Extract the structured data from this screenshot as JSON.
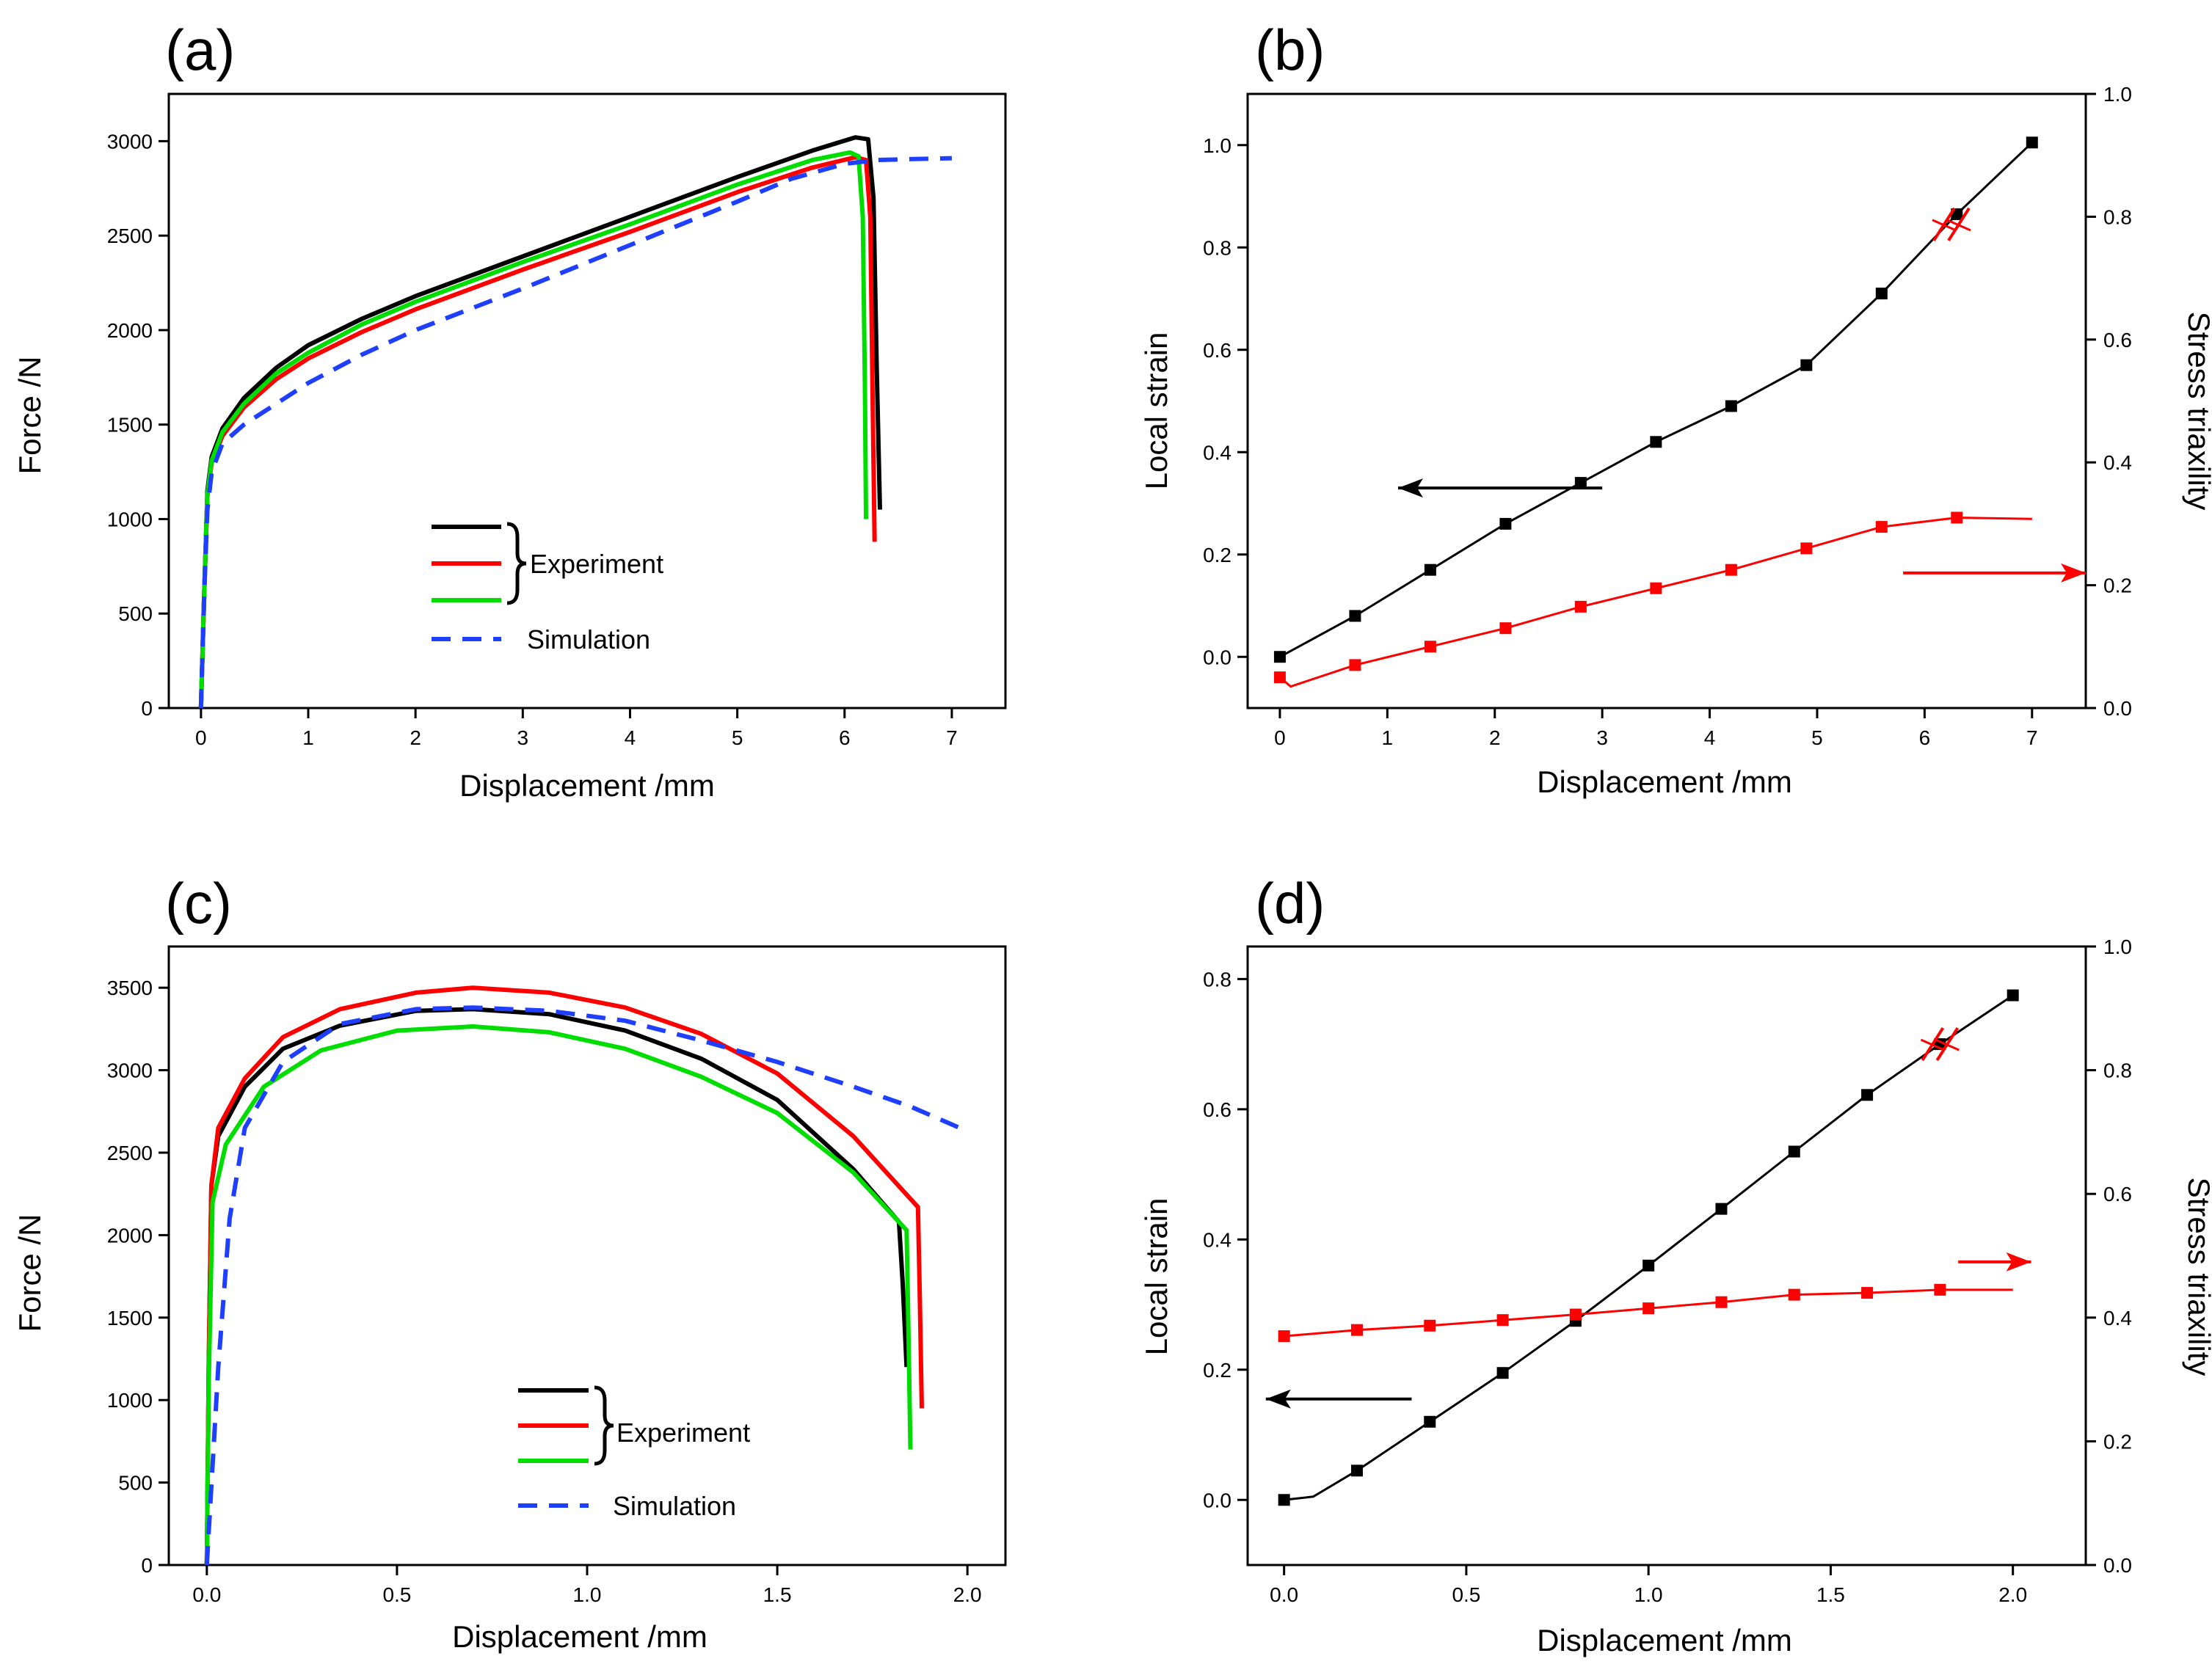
{
  "chart_data": [
    {
      "panel": "(a)",
      "type": "line",
      "xlabel": "Displacement  /mm",
      "ylabel": "Force /N",
      "xlim": [
        -0.3,
        7.5
      ],
      "ylim": [
        0,
        3250
      ],
      "xticks": [
        0,
        1,
        2,
        3,
        4,
        5,
        6,
        7
      ],
      "yticks": [
        0,
        500,
        1000,
        1500,
        2000,
        2500,
        3000
      ],
      "legend": {
        "placement": "center",
        "group_label": "Experiment",
        "sim_label": "Simulation"
      },
      "series": [
        {
          "kind": "experiment",
          "color": "#000000",
          "dash": false,
          "points": [
            [
              0,
              0
            ],
            [
              0.03,
              600
            ],
            [
              0.06,
              1150
            ],
            [
              0.1,
              1330
            ],
            [
              0.2,
              1480
            ],
            [
              0.4,
              1640
            ],
            [
              0.7,
              1800
            ],
            [
              1,
              1920
            ],
            [
              1.5,
              2060
            ],
            [
              2,
              2180
            ],
            [
              3,
              2390
            ],
            [
              4,
              2600
            ],
            [
              5,
              2810
            ],
            [
              5.7,
              2950
            ],
            [
              6.1,
              3020
            ],
            [
              6.22,
              3010
            ],
            [
              6.27,
              2700
            ],
            [
              6.3,
              1800
            ],
            [
              6.33,
              1050
            ]
          ]
        },
        {
          "kind": "experiment",
          "color": "#ff0000",
          "dash": false,
          "points": [
            [
              0,
              0
            ],
            [
              0.03,
              600
            ],
            [
              0.06,
              1120
            ],
            [
              0.1,
              1300
            ],
            [
              0.2,
              1440
            ],
            [
              0.4,
              1590
            ],
            [
              0.7,
              1740
            ],
            [
              1,
              1850
            ],
            [
              1.5,
              1990
            ],
            [
              2,
              2110
            ],
            [
              3,
              2320
            ],
            [
              4,
              2520
            ],
            [
              5,
              2730
            ],
            [
              5.7,
              2860
            ],
            [
              6.1,
              2915
            ],
            [
              6.2,
              2900
            ],
            [
              6.24,
              2600
            ],
            [
              6.26,
              1700
            ],
            [
              6.28,
              880
            ]
          ]
        },
        {
          "kind": "experiment",
          "color": "#00dd00",
          "dash": false,
          "points": [
            [
              0,
              0
            ],
            [
              0.03,
              600
            ],
            [
              0.06,
              1130
            ],
            [
              0.1,
              1310
            ],
            [
              0.2,
              1460
            ],
            [
              0.4,
              1610
            ],
            [
              0.7,
              1770
            ],
            [
              1,
              1880
            ],
            [
              1.5,
              2030
            ],
            [
              2,
              2150
            ],
            [
              3,
              2360
            ],
            [
              4,
              2560
            ],
            [
              5,
              2770
            ],
            [
              5.7,
              2900
            ],
            [
              6.05,
              2940
            ],
            [
              6.13,
              2920
            ],
            [
              6.17,
              2600
            ],
            [
              6.19,
              1700
            ],
            [
              6.2,
              1000
            ]
          ]
        },
        {
          "kind": "simulation",
          "color": "#1f3fff",
          "dash": true,
          "points": [
            [
              0,
              0
            ],
            [
              0.03,
              600
            ],
            [
              0.06,
              1050
            ],
            [
              0.1,
              1250
            ],
            [
              0.2,
              1400
            ],
            [
              0.4,
              1500
            ],
            [
              0.7,
              1610
            ],
            [
              1,
              1720
            ],
            [
              1.5,
              1870
            ],
            [
              2,
              2000
            ],
            [
              3,
              2220
            ],
            [
              4,
              2450
            ],
            [
              5,
              2680
            ],
            [
              5.5,
              2800
            ],
            [
              6,
              2880
            ],
            [
              6.3,
              2900
            ],
            [
              6.6,
              2905
            ],
            [
              7,
              2910
            ]
          ]
        }
      ]
    },
    {
      "panel": "(b)",
      "type": "line",
      "xlabel": "Displacement  /mm",
      "ylabel": "Local strain",
      "y2label": "Stress triaxility",
      "xlim": [
        -0.3,
        7.5
      ],
      "ylim": [
        -0.1,
        1.1
      ],
      "y2lim": [
        0.0,
        1.0
      ],
      "xticks": [
        0,
        1,
        2,
        3,
        4,
        5,
        6,
        7
      ],
      "yticks": [
        0.0,
        0.2,
        0.4,
        0.6,
        0.8,
        1.0
      ],
      "y2ticks": [
        0.0,
        0.2,
        0.4,
        0.6,
        0.8,
        1.0
      ],
      "series": [
        {
          "name": "",
          "axis": "left",
          "color": "#000000",
          "x": [
            0,
            0.7,
            1.4,
            2.1,
            2.8,
            3.5,
            4.2,
            4.9,
            5.6,
            6.3,
            7.0
          ],
          "values": [
            0.0,
            0.08,
            0.17,
            0.26,
            0.34,
            0.42,
            0.49,
            0.57,
            0.71,
            0.865,
            1.005
          ]
        },
        {
          "name": "",
          "axis": "right",
          "color": "#ff0000",
          "x": [
            0,
            0.7,
            1.4,
            2.1,
            2.8,
            3.5,
            4.2,
            4.9,
            5.6,
            6.3
          ],
          "values": [
            0.05,
            0.07,
            0.1,
            0.13,
            0.165,
            0.195,
            0.225,
            0.26,
            0.295,
            0.31
          ],
          "tail": [
            [
              0.1,
              0.035
            ],
            [
              7.0,
              0.308
            ]
          ]
        }
      ],
      "fracture_mark": {
        "x": 6.25,
        "axis": "left",
        "y": 0.845
      },
      "arrows": [
        {
          "direction": "left",
          "color": "#000000",
          "x_from": 3.0,
          "x_to": 1.1,
          "y_axis": "left",
          "y": 0.33
        },
        {
          "direction": "right",
          "color": "#ff0000",
          "x_from": 5.8,
          "x_to": 7.5,
          "y_axis": "right",
          "y": 0.22
        }
      ]
    },
    {
      "panel": "(c)",
      "type": "line",
      "xlabel": "Displacement  /mm",
      "ylabel": "Force /N",
      "xlim": [
        -0.1,
        2.1
      ],
      "ylim": [
        0,
        3750
      ],
      "xticks": [
        0.0,
        0.5,
        1.0,
        1.5,
        2.0
      ],
      "yticks": [
        0,
        500,
        1000,
        1500,
        2000,
        2500,
        3000,
        3500
      ],
      "legend": {
        "placement": "bottom-center",
        "group_label": "Experiment",
        "sim_label": "Simulation"
      },
      "series": [
        {
          "kind": "experiment",
          "color": "#000000",
          "dash": false,
          "points": [
            [
              0,
              0
            ],
            [
              0.005,
              1200
            ],
            [
              0.012,
              2300
            ],
            [
              0.03,
              2600
            ],
            [
              0.1,
              2900
            ],
            [
              0.2,
              3130
            ],
            [
              0.35,
              3270
            ],
            [
              0.55,
              3360
            ],
            [
              0.7,
              3370
            ],
            [
              0.9,
              3340
            ],
            [
              1.1,
              3240
            ],
            [
              1.3,
              3070
            ],
            [
              1.5,
              2820
            ],
            [
              1.7,
              2400
            ],
            [
              1.82,
              2080
            ],
            [
              1.83,
              1700
            ],
            [
              1.84,
              1200
            ]
          ]
        },
        {
          "kind": "experiment",
          "color": "#ff0000",
          "dash": false,
          "points": [
            [
              0,
              0
            ],
            [
              0.005,
              1200
            ],
            [
              0.012,
              2300
            ],
            [
              0.03,
              2650
            ],
            [
              0.1,
              2950
            ],
            [
              0.2,
              3200
            ],
            [
              0.35,
              3370
            ],
            [
              0.55,
              3470
            ],
            [
              0.7,
              3500
            ],
            [
              0.9,
              3470
            ],
            [
              1.1,
              3380
            ],
            [
              1.3,
              3220
            ],
            [
              1.5,
              2980
            ],
            [
              1.7,
              2600
            ],
            [
              1.87,
              2170
            ],
            [
              1.875,
              1600
            ],
            [
              1.88,
              950
            ]
          ]
        },
        {
          "kind": "experiment",
          "color": "#00dd00",
          "dash": false,
          "points": [
            [
              0,
              0
            ],
            [
              0.005,
              1100
            ],
            [
              0.015,
              2200
            ],
            [
              0.05,
              2550
            ],
            [
              0.15,
              2900
            ],
            [
              0.3,
              3120
            ],
            [
              0.5,
              3240
            ],
            [
              0.7,
              3265
            ],
            [
              0.9,
              3230
            ],
            [
              1.1,
              3130
            ],
            [
              1.3,
              2960
            ],
            [
              1.5,
              2740
            ],
            [
              1.7,
              2380
            ],
            [
              1.84,
              2030
            ],
            [
              1.845,
              1400
            ],
            [
              1.85,
              700
            ]
          ]
        },
        {
          "kind": "simulation",
          "color": "#1f3fff",
          "dash": true,
          "points": [
            [
              0,
              0
            ],
            [
              0.03,
              1200
            ],
            [
              0.06,
              2100
            ],
            [
              0.1,
              2650
            ],
            [
              0.2,
              3050
            ],
            [
              0.35,
              3280
            ],
            [
              0.55,
              3370
            ],
            [
              0.7,
              3380
            ],
            [
              0.9,
              3360
            ],
            [
              1.1,
              3300
            ],
            [
              1.3,
              3180
            ],
            [
              1.5,
              3050
            ],
            [
              1.7,
              2900
            ],
            [
              1.85,
              2780
            ],
            [
              1.98,
              2650
            ]
          ]
        }
      ]
    },
    {
      "panel": "(d)",
      "type": "line",
      "xlabel": "Displacement  /mm",
      "ylabel": "Local strain",
      "y2label": "Stress triaxility",
      "xlim": [
        -0.1,
        2.2
      ],
      "ylim": [
        -0.1,
        0.85
      ],
      "y2lim": [
        0.0,
        1.0
      ],
      "xticks": [
        0.0,
        0.5,
        1.0,
        1.5,
        2.0
      ],
      "yticks": [
        0.0,
        0.2,
        0.4,
        0.6,
        0.8
      ],
      "y2ticks": [
        0.0,
        0.2,
        0.4,
        0.6,
        0.8,
        1.0
      ],
      "series": [
        {
          "name": "",
          "axis": "left",
          "color": "#000000",
          "x": [
            0,
            0.2,
            0.4,
            0.6,
            0.8,
            1.0,
            1.2,
            1.4,
            1.6,
            1.8,
            2.0
          ],
          "values": [
            0.0,
            0.045,
            0.12,
            0.195,
            0.275,
            0.36,
            0.447,
            0.535,
            0.622,
            0.7,
            0.775
          ],
          "head": [
            [
              0.08,
              0.005
            ]
          ]
        },
        {
          "name": "",
          "axis": "right",
          "color": "#ff0000",
          "x": [
            0,
            0.2,
            0.4,
            0.6,
            0.8,
            1.0,
            1.2,
            1.4,
            1.6,
            1.8
          ],
          "values": [
            0.37,
            0.38,
            0.387,
            0.396,
            0.405,
            0.415,
            0.425,
            0.437,
            0.44,
            0.445
          ],
          "tail": [
            [
              2.0,
              0.445
            ]
          ]
        }
      ],
      "fracture_mark": {
        "x": 1.8,
        "axis": "left",
        "y": 0.7
      },
      "arrows": [
        {
          "direction": "left",
          "color": "#000000",
          "x_from": 0.35,
          "x_to": -0.05,
          "y_axis": "left",
          "y": 0.155
        },
        {
          "direction": "right",
          "color": "#ff0000",
          "x_from": 1.85,
          "x_to": 2.05,
          "y_axis": "right",
          "y": 0.49
        }
      ]
    }
  ]
}
